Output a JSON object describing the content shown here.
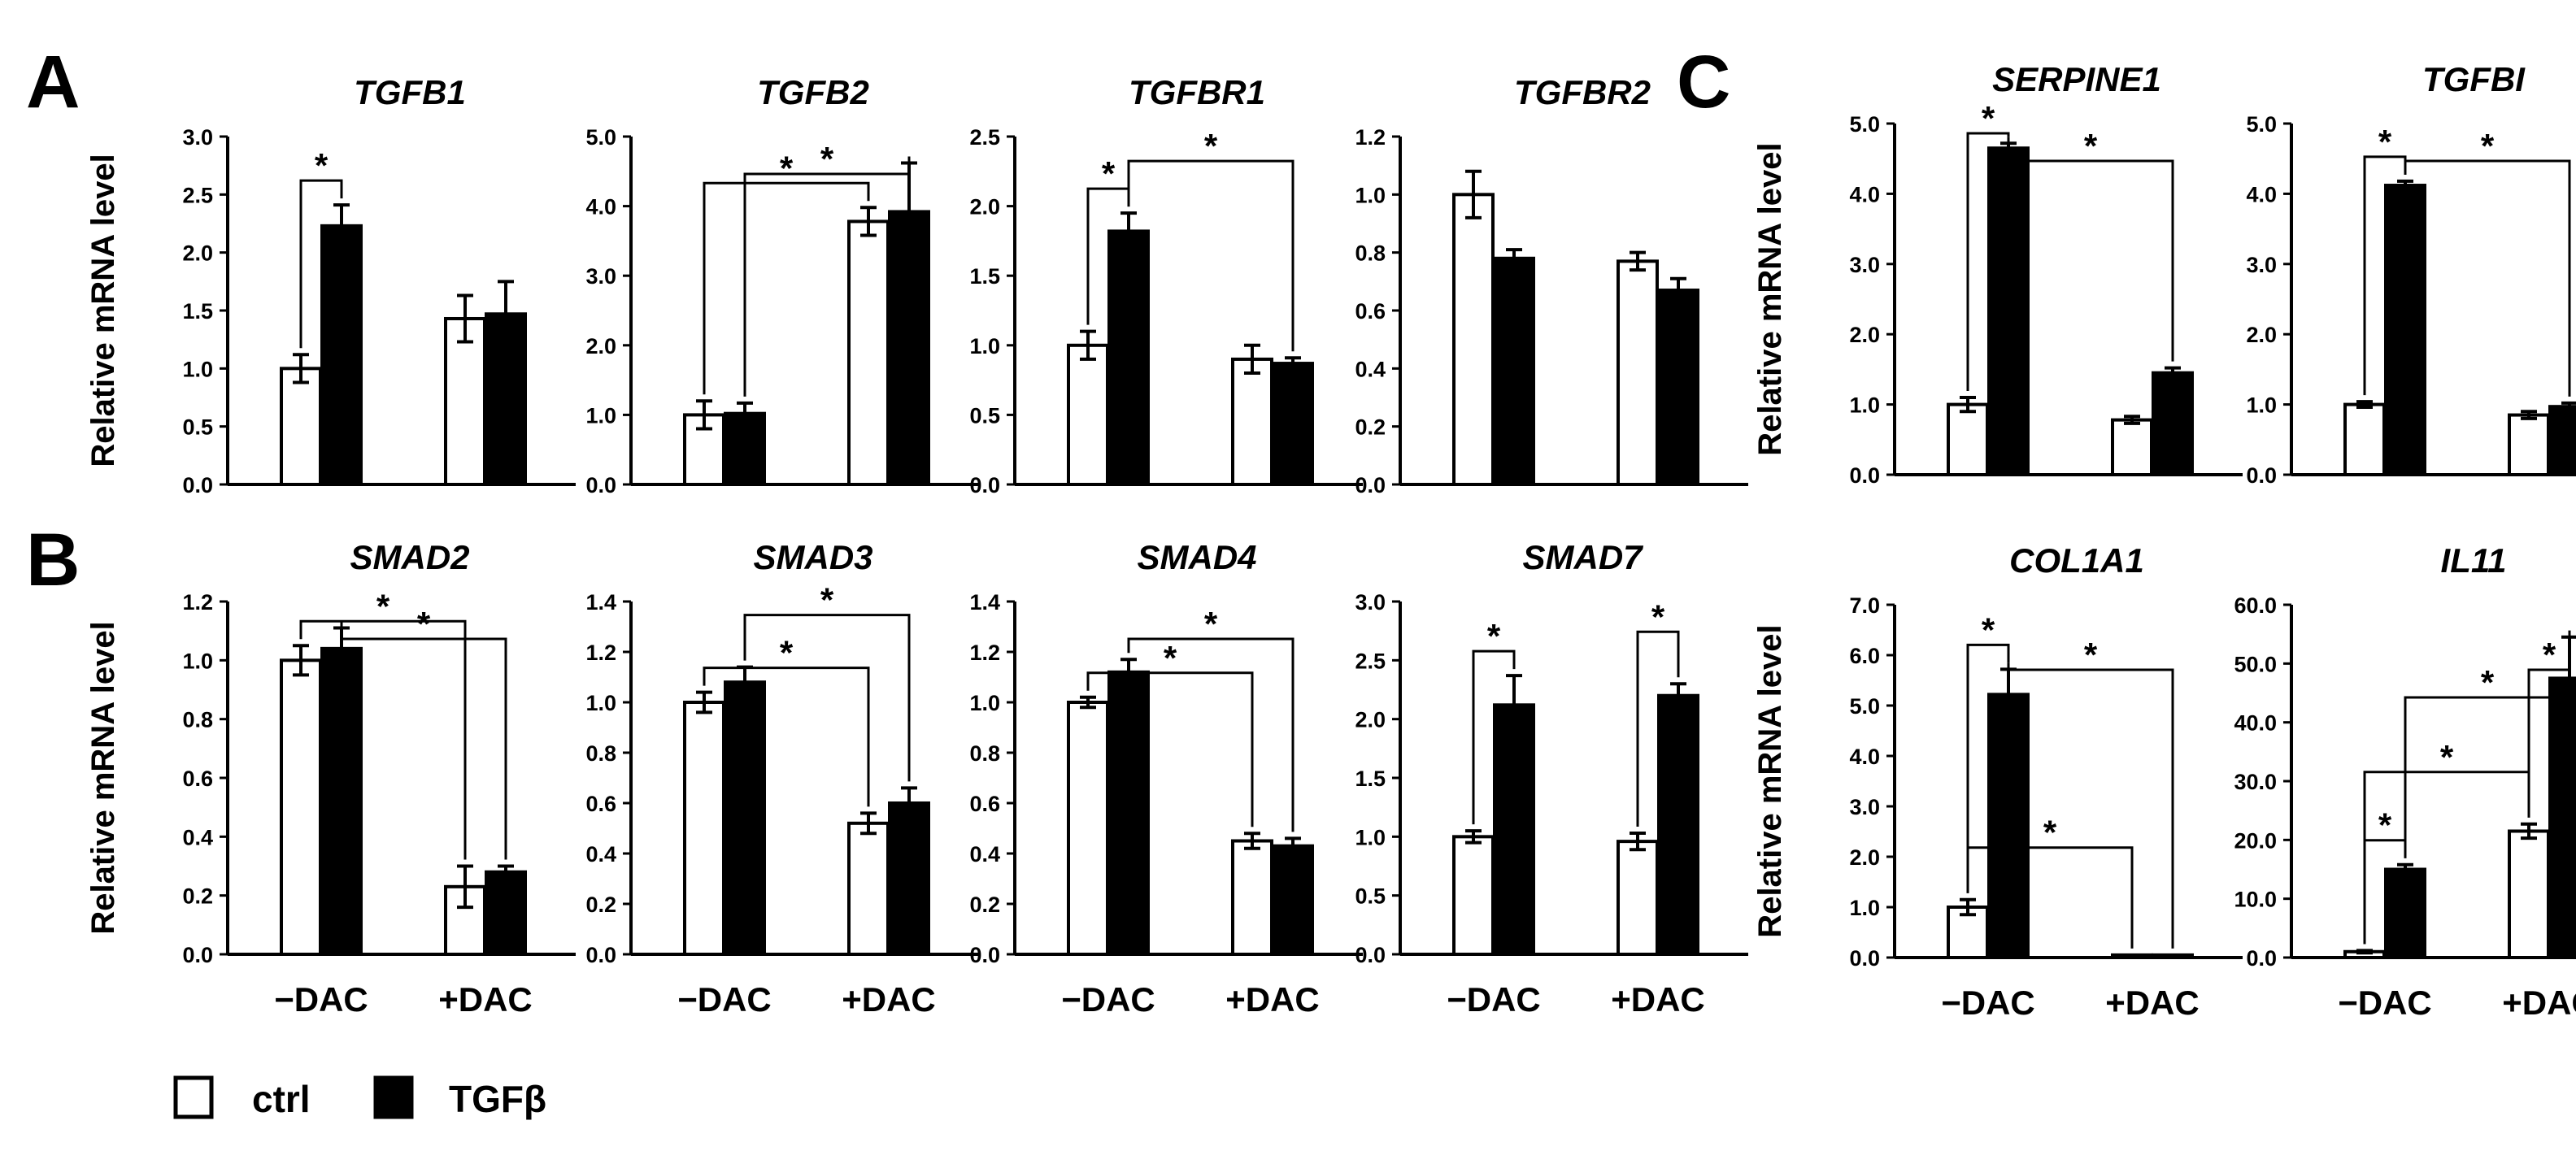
{
  "panel_labels": {
    "A": "A",
    "B": "B",
    "C": "C"
  },
  "legend": {
    "ctrl": "ctrl",
    "tgfb": "TGFβ",
    "ctrl_color": "#ffffff",
    "tgfb_color": "#000000"
  },
  "group_labels": [
    "−DAC",
    "+DAC"
  ],
  "y_axis_label": "Relative mRNA level",
  "chart_data": [
    {
      "id": "tgfb1",
      "type": "bar",
      "title": "TGFB1",
      "ylabel": "Relative mRNA level",
      "ylim": [
        0,
        3.0
      ],
      "ticks": [
        "0.0",
        "0.5",
        "1.0",
        "1.5",
        "2.0",
        "2.5",
        "3.0"
      ],
      "categories": [
        "−DAC",
        "+DAC"
      ],
      "series": [
        {
          "name": "ctrl",
          "values": [
            1.0,
            1.43
          ],
          "errors": [
            0.12,
            0.2
          ]
        },
        {
          "name": "TGFβ",
          "values": [
            2.23,
            1.47
          ],
          "errors": [
            0.18,
            0.28
          ]
        }
      ],
      "significance": [
        {
          "a": [
            0,
            0
          ],
          "b": [
            0,
            1
          ],
          "label": "*"
        }
      ]
    },
    {
      "id": "tgfb2",
      "type": "bar",
      "title": "TGFB2",
      "ylim": [
        0,
        5.0
      ],
      "ticks": [
        "0.0",
        "1.0",
        "2.0",
        "3.0",
        "4.0",
        "5.0"
      ],
      "categories": [
        "−DAC",
        "+DAC"
      ],
      "series": [
        {
          "name": "ctrl",
          "values": [
            1.0,
            3.78
          ],
          "errors": [
            0.2,
            0.2
          ]
        },
        {
          "name": "TGFβ",
          "values": [
            1.02,
            3.92
          ],
          "errors": [
            0.15,
            0.7
          ]
        }
      ],
      "significance": [
        {
          "a": [
            0,
            0
          ],
          "b": [
            1,
            0
          ],
          "label": "*"
        },
        {
          "a": [
            0,
            1
          ],
          "b": [
            1,
            1
          ],
          "label": "*"
        }
      ]
    },
    {
      "id": "tgfbr1",
      "type": "bar",
      "title": "TGFBR1",
      "ylim": [
        0,
        2.5
      ],
      "ticks": [
        "0.0",
        "0.5",
        "1.0",
        "1.5",
        "2.0",
        "2.5"
      ],
      "categories": [
        "−DAC",
        "+DAC"
      ],
      "series": [
        {
          "name": "ctrl",
          "values": [
            1.0,
            0.9
          ],
          "errors": [
            0.1,
            0.1
          ]
        },
        {
          "name": "TGFβ",
          "values": [
            1.82,
            0.87
          ],
          "errors": [
            0.13,
            0.04
          ]
        }
      ],
      "significance": [
        {
          "a": [
            0,
            0
          ],
          "b": [
            0,
            1
          ],
          "label": "*"
        },
        {
          "a": [
            0,
            1
          ],
          "b": [
            1,
            1
          ],
          "label": "*"
        }
      ]
    },
    {
      "id": "tgfbr2",
      "type": "bar",
      "title": "TGFBR2",
      "ylim": [
        0,
        1.2
      ],
      "ticks": [
        "0.0",
        "0.2",
        "0.4",
        "0.6",
        "0.8",
        "1.0",
        "1.2"
      ],
      "categories": [
        "−DAC",
        "+DAC"
      ],
      "series": [
        {
          "name": "ctrl",
          "values": [
            1.0,
            0.77
          ],
          "errors": [
            0.08,
            0.03
          ]
        },
        {
          "name": "TGFβ",
          "values": [
            0.78,
            0.67
          ],
          "errors": [
            0.03,
            0.04
          ]
        }
      ],
      "significance": []
    },
    {
      "id": "smad2",
      "type": "bar",
      "title": "SMAD2",
      "ylabel": "Relative mRNA level",
      "ylim": [
        0,
        1.2
      ],
      "ticks": [
        "0.0",
        "0.2",
        "0.4",
        "0.6",
        "0.8",
        "1.0",
        "1.2"
      ],
      "categories": [
        "−DAC",
        "+DAC"
      ],
      "series": [
        {
          "name": "ctrl",
          "values": [
            1.0,
            0.23
          ],
          "errors": [
            0.05,
            0.07
          ]
        },
        {
          "name": "TGFβ",
          "values": [
            1.04,
            0.28
          ],
          "errors": [
            0.07,
            0.02
          ]
        }
      ],
      "significance": [
        {
          "a": [
            0,
            0
          ],
          "b": [
            1,
            0
          ],
          "label": "*"
        },
        {
          "a": [
            0,
            1
          ],
          "b": [
            1,
            1
          ],
          "label": "*"
        }
      ]
    },
    {
      "id": "smad3",
      "type": "bar",
      "title": "SMAD3",
      "ylim": [
        0,
        1.4
      ],
      "ticks": [
        "0.0",
        "0.2",
        "0.4",
        "0.6",
        "0.8",
        "1.0",
        "1.2",
        "1.4"
      ],
      "categories": [
        "−DAC",
        "+DAC"
      ],
      "series": [
        {
          "name": "ctrl",
          "values": [
            1.0,
            0.52
          ],
          "errors": [
            0.04,
            0.04
          ]
        },
        {
          "name": "TGFβ",
          "values": [
            1.08,
            0.6
          ],
          "errors": [
            0.06,
            0.06
          ]
        }
      ],
      "significance": [
        {
          "a": [
            0,
            0
          ],
          "b": [
            1,
            0
          ],
          "label": "*"
        },
        {
          "a": [
            0,
            1
          ],
          "b": [
            1,
            1
          ],
          "label": "*"
        }
      ]
    },
    {
      "id": "smad4",
      "type": "bar",
      "title": "SMAD4",
      "ylim": [
        0,
        1.4
      ],
      "ticks": [
        "0.0",
        "0.2",
        "0.4",
        "0.6",
        "0.8",
        "1.0",
        "1.2",
        "1.4"
      ],
      "categories": [
        "−DAC",
        "+DAC"
      ],
      "series": [
        {
          "name": "ctrl",
          "values": [
            1.0,
            0.45
          ],
          "errors": [
            0.02,
            0.03
          ]
        },
        {
          "name": "TGFβ",
          "values": [
            1.12,
            0.43
          ],
          "errors": [
            0.05,
            0.03
          ]
        }
      ],
      "significance": [
        {
          "a": [
            0,
            0
          ],
          "b": [
            1,
            0
          ],
          "label": "*"
        },
        {
          "a": [
            0,
            1
          ],
          "b": [
            1,
            1
          ],
          "label": "*"
        }
      ]
    },
    {
      "id": "smad7",
      "type": "bar",
      "title": "SMAD7",
      "ylim": [
        0,
        3.0
      ],
      "ticks": [
        "0.0",
        "0.5",
        "1.0",
        "1.5",
        "2.0",
        "2.5",
        "3.0"
      ],
      "categories": [
        "−DAC",
        "+DAC"
      ],
      "series": [
        {
          "name": "ctrl",
          "values": [
            1.0,
            0.96
          ],
          "errors": [
            0.05,
            0.07
          ]
        },
        {
          "name": "TGFβ",
          "values": [
            2.12,
            2.2
          ],
          "errors": [
            0.25,
            0.1
          ]
        }
      ],
      "significance": [
        {
          "a": [
            0,
            0
          ],
          "b": [
            0,
            1
          ],
          "label": "*"
        },
        {
          "a": [
            1,
            0
          ],
          "b": [
            1,
            1
          ],
          "label": "*"
        }
      ]
    },
    {
      "id": "serpine1",
      "type": "bar",
      "title": "SERPINE1",
      "ylabel": "Relative mRNA level",
      "ylim": [
        0,
        5.0
      ],
      "ticks": [
        "0.0",
        "1.0",
        "2.0",
        "3.0",
        "4.0",
        "5.0"
      ],
      "categories": [
        "−DAC",
        "+DAC"
      ],
      "series": [
        {
          "name": "ctrl",
          "values": [
            1.0,
            0.78
          ],
          "errors": [
            0.1,
            0.05
          ]
        },
        {
          "name": "TGFβ",
          "values": [
            4.65,
            1.45
          ],
          "errors": [
            0.07,
            0.07
          ]
        }
      ],
      "significance": [
        {
          "a": [
            0,
            0
          ],
          "b": [
            0,
            1
          ],
          "label": "*"
        },
        {
          "a": [
            0,
            1
          ],
          "b": [
            1,
            1
          ],
          "label": "*"
        }
      ]
    },
    {
      "id": "tgfbi",
      "type": "bar",
      "title": "TGFBI",
      "ylim": [
        0,
        5.0
      ],
      "ticks": [
        "0.0",
        "1.0",
        "2.0",
        "3.0",
        "4.0",
        "5.0"
      ],
      "categories": [
        "−DAC",
        "+DAC"
      ],
      "series": [
        {
          "name": "ctrl",
          "values": [
            1.0,
            0.85
          ],
          "errors": [
            0.04,
            0.05
          ]
        },
        {
          "name": "TGFβ",
          "values": [
            4.12,
            0.97
          ],
          "errors": [
            0.06,
            0.05
          ]
        }
      ],
      "significance": [
        {
          "a": [
            0,
            0
          ],
          "b": [
            0,
            1
          ],
          "label": "*"
        },
        {
          "a": [
            0,
            1
          ],
          "b": [
            1,
            1
          ],
          "label": "*"
        }
      ]
    },
    {
      "id": "col1a1",
      "type": "bar",
      "title": "COL1A1",
      "ylabel": "Relative mRNA level",
      "ylim": [
        0,
        7.0
      ],
      "ticks": [
        "0.0",
        "1.0",
        "2.0",
        "3.0",
        "4.0",
        "5.0",
        "6.0",
        "7.0"
      ],
      "categories": [
        "−DAC",
        "+DAC"
      ],
      "series": [
        {
          "name": "ctrl",
          "values": [
            1.0,
            0.05
          ],
          "errors": [
            0.15,
            0.0
          ]
        },
        {
          "name": "TGFβ",
          "values": [
            5.22,
            0.05
          ],
          "errors": [
            0.5,
            0.0
          ]
        }
      ],
      "significance": [
        {
          "a": [
            0,
            0
          ],
          "b": [
            0,
            1
          ],
          "label": "*"
        },
        {
          "a": [
            0,
            0
          ],
          "b": [
            1,
            0
          ],
          "label": "*"
        },
        {
          "a": [
            0,
            1
          ],
          "b": [
            1,
            1
          ],
          "label": "*"
        }
      ]
    },
    {
      "id": "il11",
      "type": "bar",
      "title": "IL11",
      "ylim": [
        0,
        60.0
      ],
      "ticks": [
        "0.0",
        "10.0",
        "20.0",
        "30.0",
        "40.0",
        "50.0",
        "60.0"
      ],
      "categories": [
        "−DAC",
        "+DAC"
      ],
      "series": [
        {
          "name": "ctrl",
          "values": [
            1.0,
            21.5
          ],
          "errors": [
            0.2,
            1.2
          ]
        },
        {
          "name": "TGFβ",
          "values": [
            15.0,
            47.5
          ],
          "errors": [
            0.8,
            7.0
          ]
        }
      ],
      "significance": [
        {
          "a": [
            0,
            0
          ],
          "b": [
            0,
            1
          ],
          "label": "*"
        },
        {
          "a": [
            0,
            0
          ],
          "b": [
            1,
            0
          ],
          "label": "*"
        },
        {
          "a": [
            1,
            0
          ],
          "b": [
            1,
            1
          ],
          "label": "*"
        },
        {
          "a": [
            0,
            1
          ],
          "b": [
            1,
            1
          ],
          "label": "*"
        }
      ]
    }
  ]
}
